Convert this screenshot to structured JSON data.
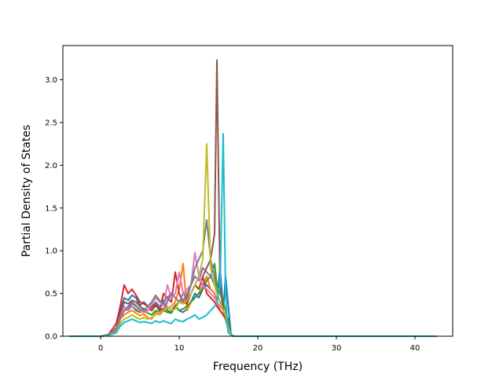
{
  "chart_data": {
    "type": "line",
    "title": "",
    "xlabel": "Frequency (THz)",
    "ylabel": "Partial Density of States",
    "xlim": [
      -4.8,
      44.8
    ],
    "ylim": [
      0.0,
      3.4
    ],
    "x_ticks": [
      0,
      10,
      20,
      30,
      40
    ],
    "x_tick_labels": [
      "0",
      "10",
      "20",
      "30",
      "40"
    ],
    "y_ticks": [
      0.0,
      0.5,
      1.0,
      1.5,
      2.0,
      2.5,
      3.0
    ],
    "y_tick_labels": [
      "0.0",
      "0.5",
      "1.0",
      "1.5",
      "2.0",
      "2.5",
      "3.0"
    ],
    "grid": false,
    "legend": "none",
    "colors": [
      "#1f77b4",
      "#ff7f0e",
      "#2ca02c",
      "#d62728",
      "#9467bd",
      "#8c564b",
      "#e377c2",
      "#7f7f7f",
      "#bcbd22",
      "#17becf"
    ],
    "x": [
      -4.0,
      0.0,
      1.0,
      2.0,
      2.5,
      3.0,
      3.5,
      4.0,
      4.5,
      5.0,
      5.5,
      6.0,
      6.5,
      7.0,
      7.5,
      8.0,
      8.5,
      9.0,
      9.5,
      10.0,
      10.5,
      11.0,
      11.5,
      12.0,
      12.5,
      13.0,
      13.5,
      14.0,
      14.5,
      14.8,
      15.2,
      15.6,
      15.9,
      16.2,
      16.6,
      17.0,
      18.0,
      42.8
    ],
    "series": [
      {
        "values": [
          0,
          0,
          0.01,
          0.1,
          0.3,
          0.45,
          0.42,
          0.48,
          0.45,
          0.36,
          0.4,
          0.35,
          0.3,
          0.38,
          0.32,
          0.42,
          0.3,
          0.28,
          0.35,
          0.3,
          0.28,
          0.32,
          0.4,
          0.5,
          0.45,
          0.55,
          0.6,
          0.55,
          0.5,
          0.4,
          0.8,
          0.3,
          0.7,
          0.4,
          0.02,
          0,
          0,
          0
        ]
      },
      {
        "values": [
          0,
          0,
          0.01,
          0.06,
          0.2,
          0.25,
          0.28,
          0.3,
          0.27,
          0.24,
          0.26,
          0.22,
          0.2,
          0.28,
          0.25,
          0.3,
          0.32,
          0.35,
          0.4,
          0.55,
          0.85,
          0.3,
          0.4,
          0.45,
          0.5,
          0.6,
          0.7,
          0.55,
          0.5,
          0.4,
          0.3,
          0.25,
          0.2,
          0.15,
          0.01,
          0,
          0,
          0
        ]
      },
      {
        "values": [
          0,
          0,
          0.01,
          0.08,
          0.22,
          0.3,
          0.32,
          0.35,
          0.3,
          0.28,
          0.3,
          0.27,
          0.25,
          0.3,
          0.28,
          0.3,
          0.28,
          0.27,
          0.35,
          0.3,
          0.32,
          0.35,
          0.4,
          0.45,
          0.5,
          0.55,
          0.65,
          0.7,
          0.85,
          0.6,
          0.5,
          0.4,
          0.3,
          0.2,
          0.01,
          0,
          0,
          0
        ]
      },
      {
        "values": [
          0,
          0,
          0.02,
          0.15,
          0.35,
          0.6,
          0.5,
          0.55,
          0.48,
          0.4,
          0.38,
          0.35,
          0.3,
          0.36,
          0.3,
          0.5,
          0.45,
          0.4,
          0.75,
          0.5,
          0.4,
          0.38,
          0.5,
          0.6,
          0.55,
          0.7,
          0.5,
          0.45,
          0.4,
          0.35,
          0.3,
          0.25,
          0.2,
          0.1,
          0.01,
          0,
          0,
          0
        ]
      },
      {
        "values": [
          0,
          0,
          0.01,
          0.07,
          0.2,
          0.3,
          0.35,
          0.4,
          0.36,
          0.3,
          0.28,
          0.3,
          0.35,
          0.4,
          0.35,
          0.3,
          0.4,
          0.5,
          0.45,
          0.4,
          0.5,
          0.45,
          0.6,
          0.7,
          0.65,
          0.8,
          0.75,
          0.7,
          0.6,
          0.5,
          0.4,
          0.3,
          0.25,
          0.15,
          0.01,
          0,
          0,
          0
        ]
      },
      {
        "values": [
          0,
          0,
          0.01,
          0.09,
          0.25,
          0.4,
          0.38,
          0.42,
          0.4,
          0.35,
          0.32,
          0.3,
          0.34,
          0.38,
          0.3,
          0.32,
          0.35,
          0.3,
          0.36,
          0.4,
          0.38,
          0.45,
          0.5,
          0.6,
          0.55,
          0.7,
          0.8,
          0.9,
          1.2,
          3.23,
          0.6,
          0.3,
          0.2,
          0.1,
          0.01,
          0,
          0,
          0
        ]
      },
      {
        "values": [
          0,
          0,
          0.01,
          0.08,
          0.22,
          0.35,
          0.3,
          0.35,
          0.32,
          0.3,
          0.28,
          0.3,
          0.38,
          0.45,
          0.4,
          0.35,
          0.6,
          0.45,
          0.5,
          0.75,
          0.5,
          0.55,
          0.6,
          0.98,
          0.7,
          0.6,
          0.55,
          0.5,
          0.45,
          0.4,
          0.35,
          0.3,
          0.25,
          0.15,
          0.01,
          0,
          0,
          0
        ]
      },
      {
        "values": [
          0,
          0,
          0.01,
          0.07,
          0.2,
          0.3,
          0.32,
          0.38,
          0.35,
          0.32,
          0.3,
          0.35,
          0.4,
          0.48,
          0.42,
          0.38,
          0.45,
          0.5,
          0.45,
          0.4,
          0.42,
          0.5,
          0.6,
          0.8,
          0.9,
          1.0,
          1.36,
          0.9,
          0.7,
          0.5,
          0.4,
          0.3,
          0.25,
          0.15,
          0.01,
          0,
          0,
          0
        ]
      },
      {
        "values": [
          0,
          0,
          0.01,
          0.05,
          0.15,
          0.2,
          0.22,
          0.25,
          0.22,
          0.2,
          0.22,
          0.2,
          0.22,
          0.25,
          0.28,
          0.3,
          0.35,
          0.3,
          0.32,
          0.4,
          0.38,
          0.42,
          0.5,
          0.6,
          0.7,
          0.9,
          2.25,
          0.8,
          0.6,
          0.5,
          0.4,
          0.3,
          0.25,
          0.1,
          0.01,
          0,
          0,
          0
        ]
      },
      {
        "values": [
          0,
          0,
          0.01,
          0.04,
          0.12,
          0.16,
          0.18,
          0.2,
          0.18,
          0.16,
          0.17,
          0.16,
          0.15,
          0.18,
          0.16,
          0.18,
          0.16,
          0.15,
          0.2,
          0.18,
          0.17,
          0.2,
          0.22,
          0.25,
          0.2,
          0.22,
          0.25,
          0.3,
          0.35,
          0.4,
          0.6,
          2.37,
          0.5,
          0.05,
          0.01,
          0,
          0,
          0
        ]
      }
    ]
  }
}
